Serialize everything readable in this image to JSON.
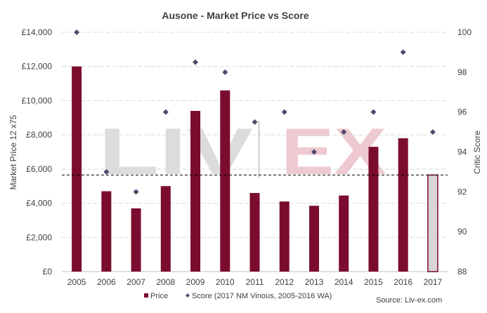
{
  "chart_data": {
    "type": "bar",
    "title": "Ausone - Market Price vs Score",
    "categories": [
      "2005",
      "2006",
      "2007",
      "2008",
      "2009",
      "2010",
      "2011",
      "2012",
      "2013",
      "2014",
      "2015",
      "2016",
      "2017"
    ],
    "series": [
      {
        "name": "Price",
        "kind": "bar",
        "axis": "left",
        "values": [
          12000,
          4700,
          3700,
          5000,
          9400,
          10600,
          4600,
          4100,
          3850,
          4450,
          7300,
          7800,
          5650
        ]
      },
      {
        "name": "Score (2017 NM Vinous, 2005-2016 WA)",
        "kind": "scatter",
        "axis": "right",
        "values": [
          100,
          93,
          92,
          96,
          98.5,
          98,
          95.5,
          96,
          94,
          95,
          96,
          99,
          95
        ]
      }
    ],
    "ylabel": "Market Price 12 x75",
    "y2label": "Critic Score",
    "ylim": [
      0,
      14000
    ],
    "y2lim": [
      88,
      100
    ],
    "yticks": [
      "£0",
      "£2,000",
      "£4,000",
      "£6,000",
      "£8,000",
      "£10,000",
      "£12,000",
      "£14,000"
    ],
    "y2ticks": [
      "88",
      "90",
      "92",
      "94",
      "96",
      "98",
      "100"
    ],
    "reference_line": 5650,
    "source": "Source: Liv-ex.com",
    "watermark": {
      "left": "LIV",
      "right": "EX"
    },
    "legend_placement": "bottom",
    "grid": true,
    "colors": {
      "bar": "#7b0c2e",
      "highlight_bar": "#d8d4d8",
      "highlight_border": "#7b0c2e",
      "marker": "#4d4a6b",
      "grid": "#d9d9d9",
      "text": "#404040",
      "watermark_grey": "#dcdcdc",
      "watermark_pink": "#eec9d0"
    }
  }
}
